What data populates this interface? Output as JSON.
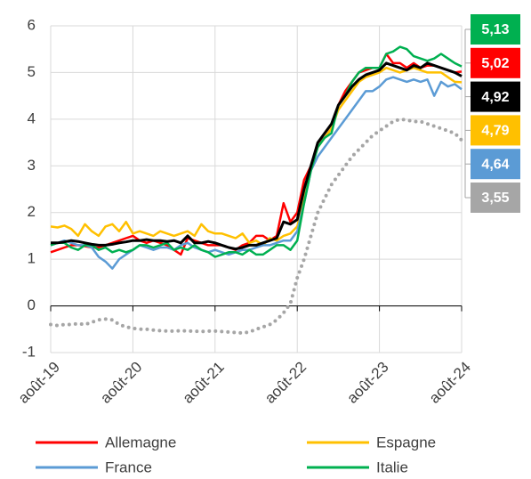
{
  "chart_data": {
    "type": "line",
    "categories": [
      "août-19",
      null,
      null,
      null,
      null,
      null,
      null,
      null,
      null,
      null,
      null,
      null,
      "août-20",
      null,
      null,
      null,
      null,
      null,
      null,
      null,
      null,
      null,
      null,
      null,
      "août-21",
      null,
      null,
      null,
      null,
      null,
      null,
      null,
      null,
      null,
      null,
      null,
      "août-22",
      null,
      null,
      null,
      null,
      null,
      null,
      null,
      null,
      null,
      null,
      null,
      "août-23",
      null,
      null,
      null,
      null,
      null,
      null,
      null,
      null,
      null,
      null,
      null,
      "août-24"
    ],
    "ylim": [
      -1,
      6
    ],
    "yticks": [
      -1,
      0,
      1,
      2,
      3,
      4,
      5,
      6
    ],
    "grid": true,
    "series": [
      {
        "name": "Allemagne",
        "color": "#ff0000",
        "values": [
          1.15,
          1.2,
          1.25,
          1.3,
          1.3,
          1.28,
          1.25,
          1.25,
          1.3,
          1.35,
          1.4,
          1.45,
          1.5,
          1.4,
          1.35,
          1.4,
          1.35,
          1.3,
          1.2,
          1.1,
          1.45,
          1.4,
          1.35,
          1.3,
          1.3,
          1.3,
          1.25,
          1.2,
          1.3,
          1.35,
          1.5,
          1.5,
          1.4,
          1.5,
          2.2,
          1.8,
          2.0,
          2.7,
          3.0,
          3.5,
          3.6,
          3.8,
          4.3,
          4.6,
          4.8,
          5.0,
          5.05,
          5.1,
          5.1,
          5.4,
          5.2,
          5.2,
          5.1,
          5.2,
          5.1,
          5.15,
          5.15,
          5.1,
          5.05,
          5.0,
          5.02
        ],
        "value_labels": [
          null,
          null,
          null,
          null,
          null,
          null,
          null,
          null,
          null,
          null,
          null,
          null,
          null,
          null,
          null,
          null,
          null,
          null,
          null,
          null,
          null,
          null,
          null,
          null,
          null,
          null,
          null,
          null,
          null,
          null,
          null,
          null,
          null,
          null,
          null,
          null,
          null,
          null,
          null,
          null,
          null,
          null,
          null,
          null,
          null,
          null,
          null,
          null,
          null,
          null,
          null,
          null,
          null,
          null,
          null,
          null,
          null,
          null,
          null,
          null,
          "5,02"
        ]
      },
      {
        "name": "Espagne",
        "color": "#ffc000",
        "values": [
          1.7,
          1.68,
          1.72,
          1.65,
          1.5,
          1.75,
          1.6,
          1.5,
          1.7,
          1.75,
          1.6,
          1.8,
          1.55,
          1.6,
          1.55,
          1.5,
          1.6,
          1.55,
          1.5,
          1.55,
          1.6,
          1.5,
          1.75,
          1.6,
          1.55,
          1.55,
          1.5,
          1.45,
          1.55,
          1.35,
          1.4,
          1.3,
          1.45,
          1.4,
          1.5,
          1.55,
          1.7,
          2.3,
          3.0,
          3.4,
          3.6,
          3.8,
          4.2,
          4.4,
          4.6,
          4.8,
          4.9,
          4.95,
          5.0,
          5.1,
          5.05,
          5.0,
          5.05,
          5.1,
          5.05,
          5.0,
          5.0,
          5.0,
          4.9,
          4.8,
          4.79
        ],
        "value_labels": [
          null,
          null,
          null,
          null,
          null,
          null,
          null,
          null,
          null,
          null,
          null,
          null,
          null,
          null,
          null,
          null,
          null,
          null,
          null,
          null,
          null,
          null,
          null,
          null,
          null,
          null,
          null,
          null,
          null,
          null,
          null,
          null,
          null,
          null,
          null,
          null,
          null,
          null,
          null,
          null,
          null,
          null,
          null,
          null,
          null,
          null,
          null,
          null,
          null,
          null,
          null,
          null,
          null,
          null,
          null,
          null,
          null,
          null,
          null,
          null,
          "4,79"
        ]
      },
      {
        "name": "France",
        "color": "#5b9bd5",
        "values": [
          1.3,
          1.35,
          1.4,
          1.35,
          1.3,
          1.3,
          1.25,
          1.05,
          0.95,
          0.8,
          1.0,
          1.1,
          1.2,
          1.3,
          1.25,
          1.2,
          1.25,
          1.25,
          1.2,
          1.3,
          1.35,
          1.25,
          1.2,
          1.15,
          1.2,
          1.15,
          1.1,
          1.15,
          1.2,
          1.2,
          1.25,
          1.3,
          1.3,
          1.35,
          1.4,
          1.4,
          1.6,
          2.2,
          2.9,
          3.2,
          3.4,
          3.6,
          3.8,
          4.0,
          4.2,
          4.4,
          4.6,
          4.6,
          4.7,
          4.85,
          4.9,
          4.85,
          4.8,
          4.85,
          4.8,
          4.85,
          4.5,
          4.8,
          4.7,
          4.75,
          4.64
        ],
        "value_labels": [
          null,
          null,
          null,
          null,
          null,
          null,
          null,
          null,
          null,
          null,
          null,
          null,
          null,
          null,
          null,
          null,
          null,
          null,
          null,
          null,
          null,
          null,
          null,
          null,
          null,
          null,
          null,
          null,
          null,
          null,
          null,
          null,
          null,
          null,
          null,
          null,
          null,
          null,
          null,
          null,
          null,
          null,
          null,
          null,
          null,
          null,
          null,
          null,
          null,
          null,
          null,
          null,
          null,
          null,
          null,
          null,
          null,
          null,
          null,
          null,
          "4,64"
        ]
      },
      {
        "name": "Italie",
        "color": "#00b050",
        "values": [
          1.3,
          1.35,
          1.35,
          1.25,
          1.2,
          1.3,
          1.3,
          1.2,
          1.25,
          1.15,
          1.2,
          1.15,
          1.2,
          1.3,
          1.3,
          1.25,
          1.3,
          1.35,
          1.2,
          1.25,
          1.2,
          1.3,
          1.2,
          1.15,
          1.05,
          1.1,
          1.15,
          1.15,
          1.1,
          1.2,
          1.1,
          1.1,
          1.2,
          1.3,
          1.3,
          1.2,
          1.4,
          2.2,
          2.9,
          3.4,
          3.6,
          3.7,
          4.3,
          4.5,
          4.8,
          5.0,
          5.1,
          5.1,
          5.1,
          5.4,
          5.45,
          5.55,
          5.5,
          5.35,
          5.3,
          5.25,
          5.3,
          5.4,
          5.3,
          5.2,
          5.13
        ],
        "value_labels": [
          null,
          null,
          null,
          null,
          null,
          null,
          null,
          null,
          null,
          null,
          null,
          null,
          null,
          null,
          null,
          null,
          null,
          null,
          null,
          null,
          null,
          null,
          null,
          null,
          null,
          null,
          null,
          null,
          null,
          null,
          null,
          null,
          null,
          null,
          null,
          null,
          null,
          null,
          null,
          null,
          null,
          null,
          null,
          null,
          null,
          null,
          null,
          null,
          null,
          null,
          null,
          null,
          null,
          null,
          null,
          null,
          null,
          null,
          null,
          null,
          "5,13"
        ]
      },
      {
        "color": "#000000",
        "line_width": 3,
        "values": [
          1.35,
          1.35,
          1.37,
          1.4,
          1.38,
          1.35,
          1.32,
          1.3,
          1.3,
          1.32,
          1.35,
          1.37,
          1.4,
          1.4,
          1.42,
          1.4,
          1.4,
          1.38,
          1.4,
          1.35,
          1.5,
          1.35,
          1.35,
          1.38,
          1.35,
          1.3,
          1.25,
          1.22,
          1.25,
          1.3,
          1.3,
          1.35,
          1.4,
          1.45,
          1.8,
          1.75,
          1.85,
          2.5,
          3.0,
          3.5,
          3.7,
          3.9,
          4.3,
          4.5,
          4.7,
          4.85,
          4.95,
          5.0,
          5.05,
          5.2,
          5.15,
          5.1,
          5.05,
          5.15,
          5.1,
          5.2,
          5.15,
          5.1,
          5.05,
          5.0,
          4.92
        ],
        "value_labels": [
          null,
          null,
          null,
          null,
          null,
          null,
          null,
          null,
          null,
          null,
          null,
          null,
          null,
          null,
          null,
          null,
          null,
          null,
          null,
          null,
          null,
          null,
          null,
          null,
          null,
          null,
          null,
          null,
          null,
          null,
          null,
          null,
          null,
          null,
          null,
          null,
          null,
          null,
          null,
          null,
          null,
          null,
          null,
          null,
          null,
          null,
          null,
          null,
          null,
          null,
          null,
          null,
          null,
          null,
          null,
          null,
          null,
          null,
          null,
          null,
          "4,92"
        ]
      },
      {
        "color": "#a6a6a6",
        "line_style": "dotted",
        "values": [
          -0.4,
          -0.42,
          -0.4,
          -0.4,
          -0.38,
          -0.4,
          -0.35,
          -0.3,
          -0.28,
          -0.3,
          -0.4,
          -0.45,
          -0.48,
          -0.5,
          -0.5,
          -0.52,
          -0.53,
          -0.54,
          -0.54,
          -0.53,
          -0.54,
          -0.54,
          -0.55,
          -0.54,
          -0.54,
          -0.55,
          -0.56,
          -0.57,
          -0.58,
          -0.56,
          -0.5,
          -0.45,
          -0.4,
          -0.3,
          -0.15,
          0.05,
          0.6,
          1.0,
          1.5,
          2.0,
          2.3,
          2.6,
          2.8,
          3.0,
          3.2,
          3.35,
          3.5,
          3.65,
          3.75,
          3.85,
          3.95,
          4.0,
          3.98,
          3.95,
          3.95,
          3.9,
          3.85,
          3.8,
          3.75,
          3.7,
          3.55
        ],
        "value_labels": [
          null,
          null,
          null,
          null,
          null,
          null,
          null,
          null,
          null,
          null,
          null,
          null,
          null,
          null,
          null,
          null,
          null,
          null,
          null,
          null,
          null,
          null,
          null,
          null,
          null,
          null,
          null,
          null,
          null,
          null,
          null,
          null,
          null,
          null,
          null,
          null,
          null,
          null,
          null,
          null,
          null,
          null,
          null,
          null,
          null,
          null,
          null,
          null,
          null,
          null,
          null,
          null,
          null,
          null,
          null,
          null,
          null,
          null,
          null,
          null,
          "3,55"
        ]
      }
    ]
  }
}
